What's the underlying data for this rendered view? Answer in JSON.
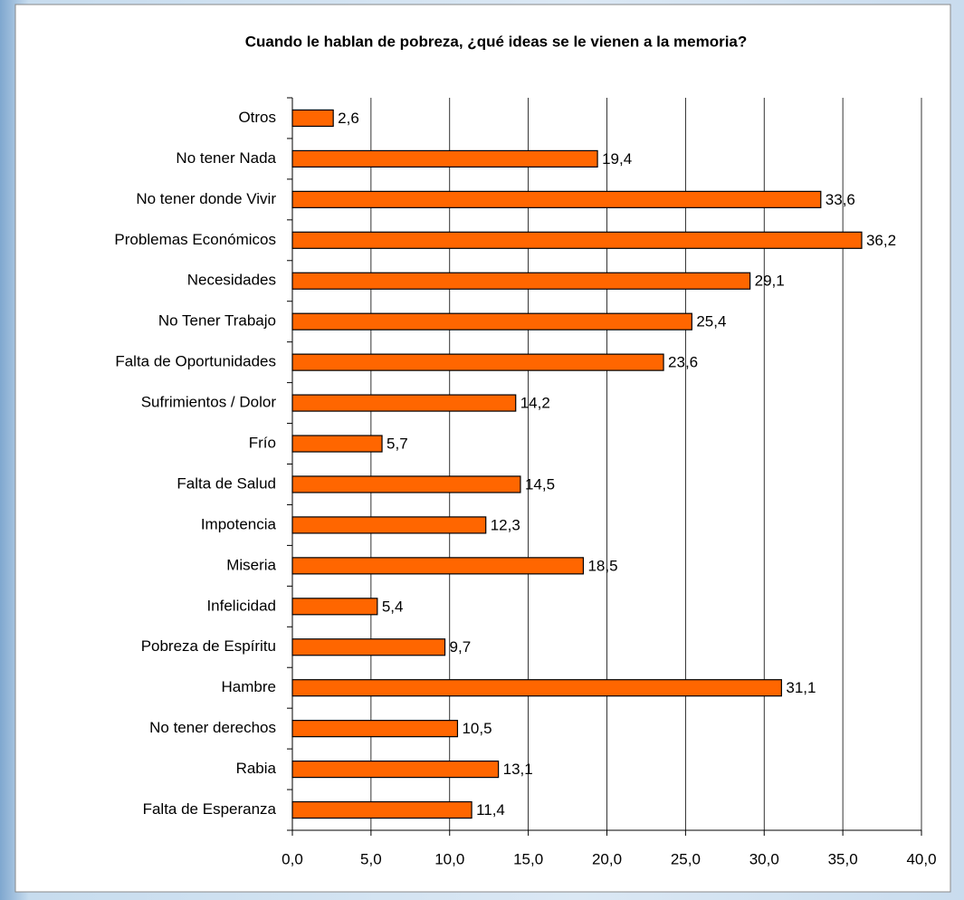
{
  "chart_data": {
    "type": "bar",
    "orientation": "horizontal",
    "title": "Cuando le hablan de pobreza, ¿qué ideas se le vienen a la memoria?",
    "categories": [
      "Otros",
      "No tener Nada",
      "No tener donde Vivir",
      "Problemas Económicos",
      "Necesidades",
      "No Tener Trabajo",
      "Falta de Oportunidades",
      "Sufrimientos / Dolor",
      "Frío",
      "Falta de Salud",
      "Impotencia",
      "Miseria",
      "Infelicidad",
      "Pobreza de Espíritu",
      "Hambre",
      "No tener derechos",
      "Rabia",
      "Falta de Esperanza"
    ],
    "values": [
      2.6,
      19.4,
      33.6,
      36.2,
      29.1,
      25.4,
      23.6,
      14.2,
      5.7,
      14.5,
      12.3,
      18.5,
      5.4,
      9.7,
      31.1,
      10.5,
      13.1,
      11.4
    ],
    "value_labels": [
      "2,6",
      "19,4",
      "33,6",
      "36,2",
      "29,1",
      "25,4",
      "23,6",
      "14,2",
      "5,7",
      "14,5",
      "12,3",
      "18,5",
      "5,4",
      "9,7",
      "31,1",
      "10,5",
      "13,1",
      "11,4"
    ],
    "color": "#ff6600",
    "xlim": [
      0,
      40
    ],
    "xticks": [
      {
        "value": 0,
        "label": "0,0"
      },
      {
        "value": 5,
        "label": "5,0"
      },
      {
        "value": 10,
        "label": "10,0"
      },
      {
        "value": 15,
        "label": "15,0"
      },
      {
        "value": 20,
        "label": "20,0"
      },
      {
        "value": 25,
        "label": "25,0"
      },
      {
        "value": 30,
        "label": "30,0"
      },
      {
        "value": 35,
        "label": "35,0"
      },
      {
        "value": 40,
        "label": "40,0"
      }
    ],
    "grid": true
  }
}
